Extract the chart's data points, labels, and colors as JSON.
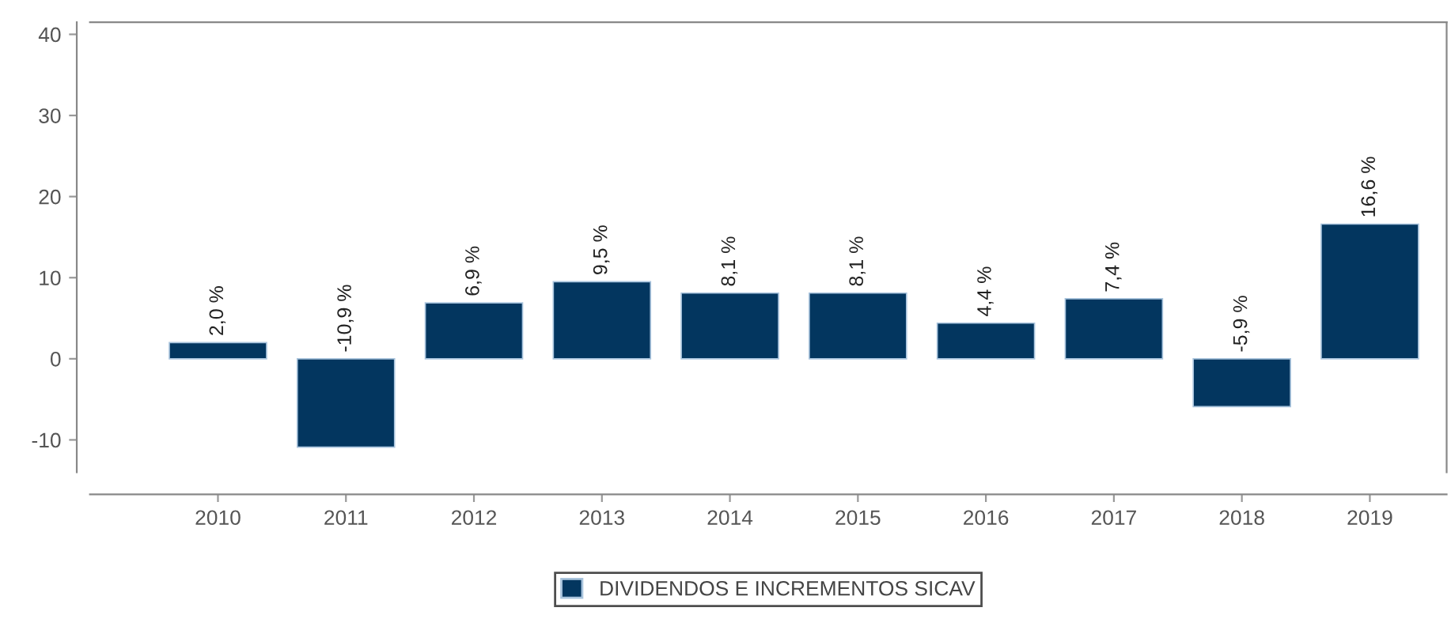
{
  "chart_data": {
    "type": "bar",
    "categories": [
      "2010",
      "2011",
      "2012",
      "2013",
      "2014",
      "2015",
      "2016",
      "2017",
      "2018",
      "2019"
    ],
    "series": [
      {
        "name": "DIVIDENDOS E INCREMENTOS SICAV",
        "color": "#03365f",
        "values": [
          2.0,
          -10.9,
          6.9,
          9.5,
          8.1,
          8.1,
          4.4,
          7.4,
          -5.9,
          16.6
        ],
        "value_labels": [
          "2,0 %",
          "-10,9 %",
          "6,9 %",
          "9,5 %",
          "8,1 %",
          "8,1 %",
          "4,4 %",
          "7,4 %",
          "-5,9 %",
          "16,6 %"
        ]
      }
    ],
    "ylim": [
      -14,
      41.5
    ],
    "yticks": [
      -10,
      0,
      10,
      20,
      30,
      40
    ],
    "grid": false,
    "legend": "bottom"
  }
}
